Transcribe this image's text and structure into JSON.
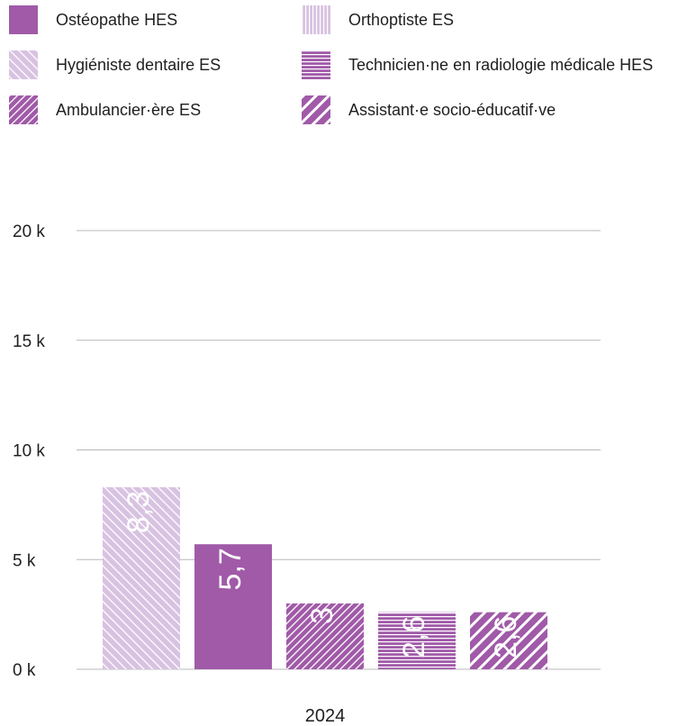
{
  "colors": {
    "purple": "#a05aa8",
    "light_purple": "#d8c2e1",
    "grid": "#b8b8b8",
    "text": "#1f1f1f"
  },
  "chart_data": {
    "type": "bar",
    "x_category": "2024",
    "y_ticks": [
      "0 k",
      "5 k",
      "10 k",
      "15 k",
      "20 k"
    ],
    "ylim": [
      0,
      20000
    ],
    "grid": true,
    "legend_position": "top",
    "series": [
      {
        "name": "Hygiéniste dentaire ES",
        "value": 8300,
        "label": "8,3",
        "pattern": "diag-backslash"
      },
      {
        "name": "Ostéopathe HES",
        "value": 5700,
        "label": "5,7",
        "pattern": "solid"
      },
      {
        "name": "Ambulancier·ère ES",
        "value": 3000,
        "label": "3",
        "pattern": "diag-fine"
      },
      {
        "name": "Technicien·ne en radiologie médicale HES",
        "value": 2600,
        "label": "2,6",
        "pattern": "horizontal"
      },
      {
        "name": "Assistant·e socio-éducatif·ve",
        "value": 2600,
        "label": "2,6",
        "pattern": "diag-bold"
      }
    ],
    "legend": [
      {
        "name": "Ostéopathe HES",
        "pattern": "solid"
      },
      {
        "name": "Orthoptiste ES",
        "pattern": "vertical"
      },
      {
        "name": "Hygiéniste dentaire ES",
        "pattern": "diag-backslash"
      },
      {
        "name": "Technicien·ne en radiologie médicale HES",
        "pattern": "horizontal"
      },
      {
        "name": "Ambulancier·ère ES",
        "pattern": "diag-fine"
      },
      {
        "name": "Assistant·e socio-éducatif·ve",
        "pattern": "diag-bold"
      }
    ]
  }
}
